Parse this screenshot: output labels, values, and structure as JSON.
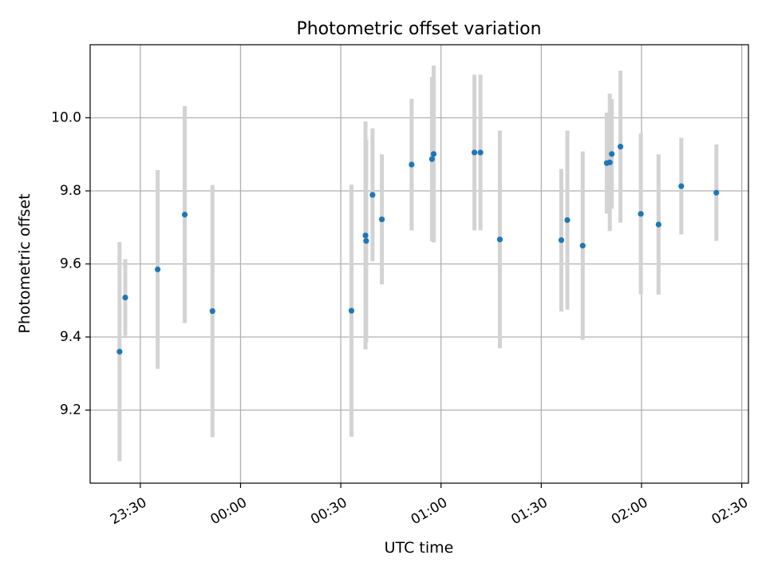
{
  "chart_data": {
    "type": "scatter",
    "title": "Photometric offset variation",
    "xlabel": "UTC time",
    "ylabel": "Photometric offset",
    "x_unit": "minutes since 23:00 UTC",
    "xlim": [
      15,
      212
    ],
    "ylim": [
      9.0,
      10.2
    ],
    "x_ticks": [
      {
        "value": 30,
        "label": "23:30"
      },
      {
        "value": 60,
        "label": "00:00"
      },
      {
        "value": 90,
        "label": "00:30"
      },
      {
        "value": 120,
        "label": "01:00"
      },
      {
        "value": 150,
        "label": "01:30"
      },
      {
        "value": 180,
        "label": "02:00"
      },
      {
        "value": 210,
        "label": "02:30"
      }
    ],
    "y_ticks": [
      {
        "value": 9.2,
        "label": "9.2"
      },
      {
        "value": 9.4,
        "label": "9.4"
      },
      {
        "value": 9.6,
        "label": "9.6"
      },
      {
        "value": 9.8,
        "label": "9.8"
      },
      {
        "value": 10.0,
        "label": "10.0"
      }
    ],
    "grid": true,
    "colors": {
      "points": "#1f77b4",
      "errorbars": "#d3d3d3",
      "grid": "#b0b0b0"
    },
    "points": [
      {
        "x": 23.8,
        "y": 9.36,
        "err": 0.3
      },
      {
        "x": 25.5,
        "y": 9.508,
        "err": 0.105
      },
      {
        "x": 35.2,
        "y": 9.585,
        "err": 0.272
      },
      {
        "x": 43.3,
        "y": 9.735,
        "err": 0.297
      },
      {
        "x": 51.6,
        "y": 9.471,
        "err": 0.345
      },
      {
        "x": 93.2,
        "y": 9.472,
        "err": 0.345
      },
      {
        "x": 97.4,
        "y": 9.678,
        "err": 0.312
      },
      {
        "x": 97.6,
        "y": 9.663,
        "err": 0.277
      },
      {
        "x": 99.5,
        "y": 9.789,
        "err": 0.182
      },
      {
        "x": 102.3,
        "y": 9.722,
        "err": 0.178
      },
      {
        "x": 111.2,
        "y": 9.872,
        "err": 0.18
      },
      {
        "x": 117.3,
        "y": 9.887,
        "err": 0.225
      },
      {
        "x": 117.8,
        "y": 9.901,
        "err": 0.242
      },
      {
        "x": 130.0,
        "y": 9.905,
        "err": 0.213
      },
      {
        "x": 131.8,
        "y": 9.905,
        "err": 0.213
      },
      {
        "x": 137.6,
        "y": 9.667,
        "err": 0.298
      },
      {
        "x": 156.0,
        "y": 9.665,
        "err": 0.195
      },
      {
        "x": 157.8,
        "y": 9.72,
        "err": 0.245
      },
      {
        "x": 162.4,
        "y": 9.65,
        "err": 0.258
      },
      {
        "x": 169.6,
        "y": 9.876,
        "err": 0.138
      },
      {
        "x": 170.5,
        "y": 9.878,
        "err": 0.188
      },
      {
        "x": 171.1,
        "y": 9.901,
        "err": 0.15
      },
      {
        "x": 173.7,
        "y": 9.921,
        "err": 0.208
      },
      {
        "x": 179.8,
        "y": 9.737,
        "err": 0.22
      },
      {
        "x": 185.1,
        "y": 9.708,
        "err": 0.192
      },
      {
        "x": 191.9,
        "y": 9.813,
        "err": 0.132
      },
      {
        "x": 202.4,
        "y": 9.795,
        "err": 0.132
      }
    ]
  }
}
